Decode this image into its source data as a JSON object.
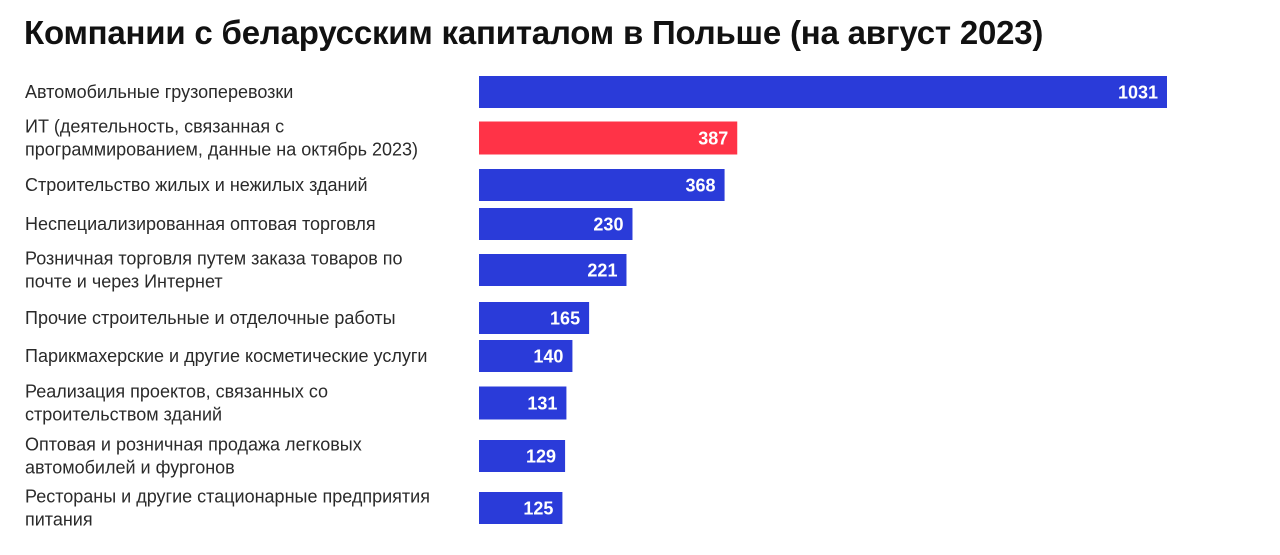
{
  "chart_data": {
    "type": "bar",
    "orientation": "horizontal",
    "title": "Компании с беларусским капиталом в Польше (на август 2023)",
    "categories": [
      [
        "Автомобильные грузоперевозки"
      ],
      [
        "ИТ (деятельность, связанная с",
        "программированием, данные на октябрь 2023)"
      ],
      [
        "Строительство жилых и нежилых зданий"
      ],
      [
        "Неспециализированная оптовая торговля"
      ],
      [
        "Розничная торговля путем заказа товаров по",
        "почте и через Интернет"
      ],
      [
        "Прочие строительные и отделочные работы"
      ],
      [
        "Парикмахерские и другие косметические услуги"
      ],
      [
        "Реализация проектов, связанных со",
        "строительством зданий"
      ],
      [
        "Оптовая и розничная продажа легковых",
        "автомобилей и фургонов"
      ],
      [
        "Рестораны и другие стационарные предприятия",
        "питания"
      ]
    ],
    "values": [
      1031,
      387,
      368,
      230,
      221,
      165,
      140,
      131,
      129,
      125
    ],
    "xlim": [
      0,
      1031
    ],
    "grid": false,
    "colors": {
      "default": "#2a3bd9",
      "highlight": "#ff3347"
    },
    "highlight_index": 1
  }
}
